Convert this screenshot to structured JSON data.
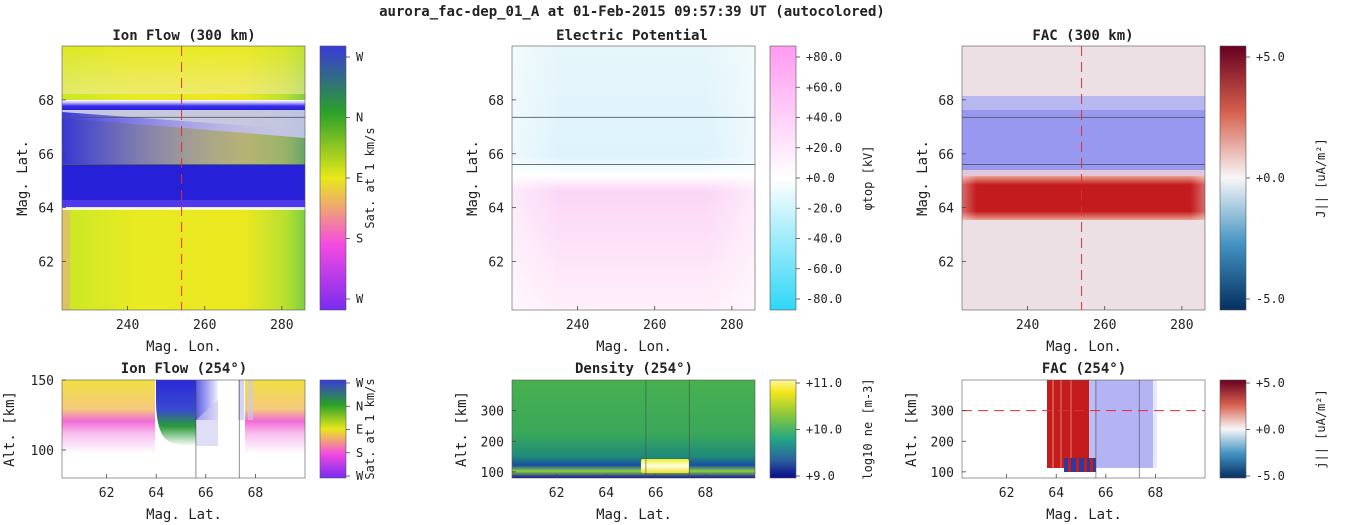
{
  "figure": {
    "title": "aurora_fac-dep_01_A at 01-Feb-2015 09:57:39 UT (autocolored)"
  },
  "chart_data": [
    {
      "id": "ionflow-map",
      "type": "heatmap",
      "title": "Ion Flow (300 km)",
      "xlabel": "Mag. Lon.",
      "ylabel": "Mag. Lat.",
      "xlim": [
        223,
        286
      ],
      "ylim": [
        60.2,
        70
      ],
      "xticks": [
        240,
        260,
        280
      ],
      "yticks": [
        62,
        64,
        66,
        68
      ],
      "colorbar": {
        "label": "Sat. at 1 km/s",
        "ticks": [
          "W",
          "N",
          "E",
          "S",
          "W"
        ],
        "colors": [
          "#7a2cf0",
          "#3b3bdc",
          "#2aa02a",
          "#e8e81a",
          "#f0a07a",
          "#f44be0",
          "#7a2cf0"
        ]
      },
      "hlines": [
        67.35,
        65.6
      ],
      "vline": 254
    },
    {
      "id": "potential-map",
      "type": "heatmap",
      "title": "Electric Potential",
      "xlabel": "Mag. Lon.",
      "ylabel": "Mag. Lat.",
      "xlim": [
        223,
        286
      ],
      "ylim": [
        60.2,
        70
      ],
      "xticks": [
        240,
        260,
        280
      ],
      "yticks": [
        62,
        64,
        66,
        68
      ],
      "colorbar": {
        "label": "φtop [kV]",
        "ticks": [
          "+80.0",
          "+60.0",
          "+40.0",
          "+20.0",
          "+0.0",
          "-20.0",
          "-40.0",
          "-60.0",
          "-80.0"
        ],
        "colors": [
          "#ff9af0",
          "#ffffff",
          "#2fd6f5"
        ]
      },
      "hlines": [
        67.35,
        65.6
      ]
    },
    {
      "id": "fac-map",
      "type": "heatmap",
      "title": "FAC (300 km)",
      "xlabel": "Mag. Lon.",
      "ylabel": "Mag. Lat.",
      "xlim": [
        223,
        286
      ],
      "ylim": [
        60.2,
        70
      ],
      "xticks": [
        240,
        260,
        280
      ],
      "yticks": [
        62,
        64,
        66,
        68
      ],
      "colorbar": {
        "label": "J|| [uA/m²]",
        "ticks": [
          "+5.0",
          "+0.0",
          "-5.0"
        ],
        "colors": [
          "#67001f",
          "#d6604d",
          "#f7f7f7",
          "#4393c3",
          "#053061"
        ]
      },
      "hlines": [
        67.35,
        65.6
      ],
      "vline": 254
    },
    {
      "id": "ionflow-slice",
      "type": "heatmap",
      "title": "Ion Flow (254°)",
      "xlabel": "Mag. Lat.",
      "ylabel": "Alt. [km]",
      "xlim": [
        60.2,
        70
      ],
      "ylim": [
        80,
        150
      ],
      "xticks": [
        62,
        64,
        66,
        68
      ],
      "yticks": [
        100,
        150
      ],
      "colorbar": {
        "label": "Sat. at 1 km/s",
        "ticks": [
          "W",
          "N",
          "E",
          "S",
          "W"
        ],
        "colors": [
          "#7a2cf0",
          "#3b3bdc",
          "#2aa02a",
          "#e8e81a",
          "#f0a07a",
          "#f44be0",
          "#7a2cf0"
        ]
      },
      "vlines": [
        65.6,
        67.35
      ]
    },
    {
      "id": "density-slice",
      "type": "heatmap",
      "title": "Density (254°)",
      "xlabel": "Mag. Lat.",
      "ylabel": "Alt. [km]",
      "xlim": [
        60.2,
        70
      ],
      "ylim": [
        80,
        400
      ],
      "xticks": [
        62,
        64,
        66,
        68
      ],
      "yticks": [
        100,
        200,
        300
      ],
      "colorbar": {
        "label": "log10 ne [m-3]",
        "ticks": [
          "+11.0",
          "+10.0",
          "+9.0"
        ],
        "colors": [
          "#fde725",
          "#7ad151",
          "#22a884",
          "#2a788e",
          "#1f2fa0",
          "#0a0a8c"
        ]
      },
      "vlines": [
        65.6,
        67.35
      ]
    },
    {
      "id": "fac-slice",
      "type": "heatmap",
      "title": "FAC (254°)",
      "xlabel": "Mag. Lat.",
      "ylabel": "Alt. [km]",
      "xlim": [
        60.2,
        70
      ],
      "ylim": [
        80,
        400
      ],
      "xticks": [
        62,
        64,
        66,
        68
      ],
      "yticks": [
        100,
        200,
        300
      ],
      "colorbar": {
        "label": "j|| [uA/m²]",
        "ticks": [
          "+5.0",
          "+0.0",
          "-5.0"
        ],
        "colors": [
          "#67001f",
          "#d6604d",
          "#f7f7f7",
          "#4393c3",
          "#053061"
        ]
      },
      "vlines": [
        65.6,
        67.35
      ],
      "hline": 300
    }
  ]
}
